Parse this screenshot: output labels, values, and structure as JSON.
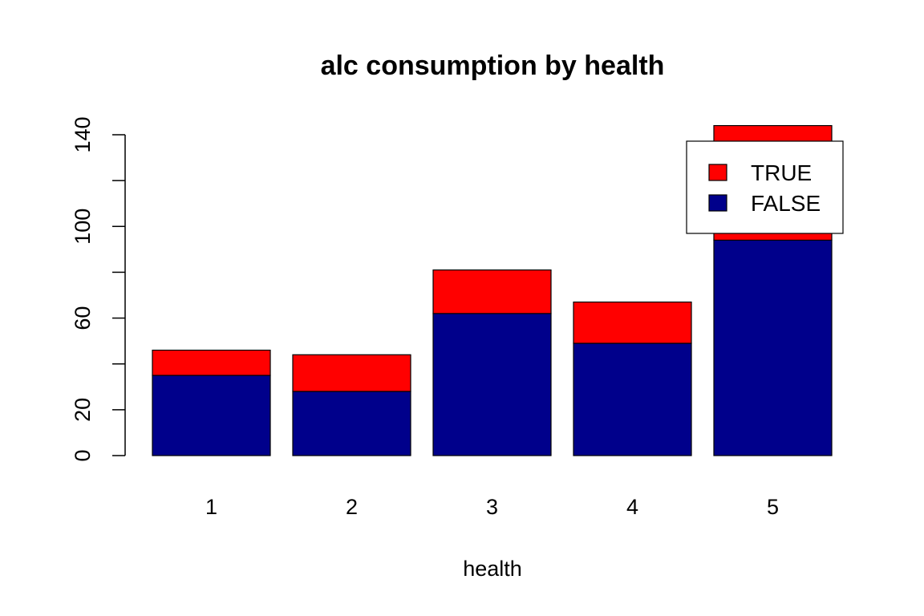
{
  "chart_data": {
    "type": "bar",
    "stacked": true,
    "title": "alc consumption by health",
    "xlabel": "health",
    "ylabel": "",
    "categories": [
      "1",
      "2",
      "3",
      "4",
      "5"
    ],
    "series": [
      {
        "name": "FALSE",
        "values": [
          35,
          28,
          62,
          49,
          94
        ],
        "color": "#00008B"
      },
      {
        "name": "TRUE",
        "values": [
          11,
          16,
          19,
          18,
          50
        ],
        "color": "#FF0000"
      }
    ],
    "ylim": [
      0,
      140
    ],
    "yticks": [
      0,
      20,
      40,
      60,
      80,
      100,
      120,
      140
    ],
    "yticklabels": [
      "0",
      "20",
      "",
      "60",
      "",
      "100",
      "",
      "140"
    ],
    "legend": {
      "placement": "top-right",
      "entries": [
        {
          "label": "TRUE",
          "color": "#FF0000"
        },
        {
          "label": "FALSE",
          "color": "#00008B"
        }
      ]
    },
    "grid": false
  }
}
